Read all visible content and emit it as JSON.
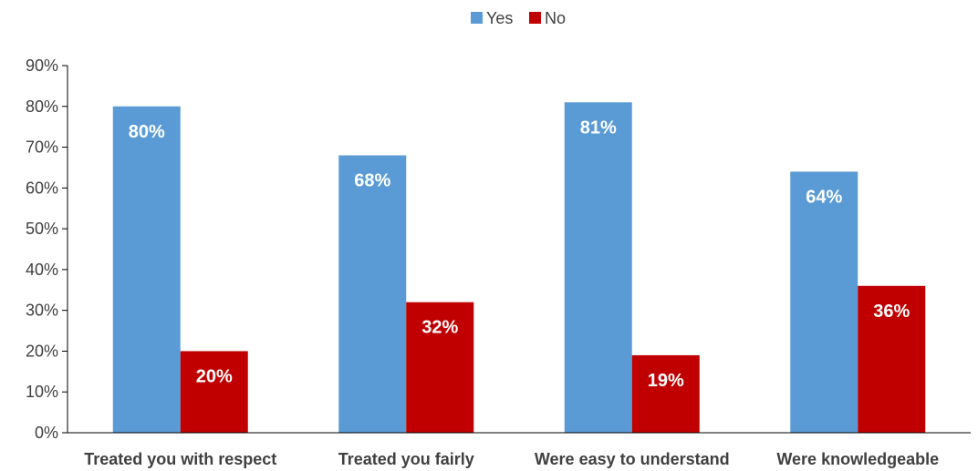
{
  "chart_data": {
    "type": "bar",
    "categories": [
      "Treated you with respect",
      "Treated you fairly",
      "Were easy to understand",
      "Were knowledgeable"
    ],
    "series": [
      {
        "name": "Yes",
        "values": [
          80,
          68,
          81,
          64
        ],
        "labels": [
          "80%",
          "68%",
          "81%",
          "64%"
        ],
        "color": "#5b9bd5"
      },
      {
        "name": "No",
        "values": [
          20,
          32,
          19,
          36
        ],
        "labels": [
          "20%",
          "32%",
          "19%",
          "36%"
        ],
        "color": "#c00000"
      }
    ],
    "ylim": [
      0,
      90
    ],
    "yticks": [
      0,
      10,
      20,
      30,
      40,
      50,
      60,
      70,
      80,
      90
    ],
    "ytick_labels": [
      "0%",
      "10%",
      "20%",
      "30%",
      "40%",
      "50%",
      "60%",
      "70%",
      "80%",
      "90%"
    ],
    "legend_position": "top-center",
    "grid": false,
    "axis_color": "#000000",
    "text_color": "#404040"
  }
}
